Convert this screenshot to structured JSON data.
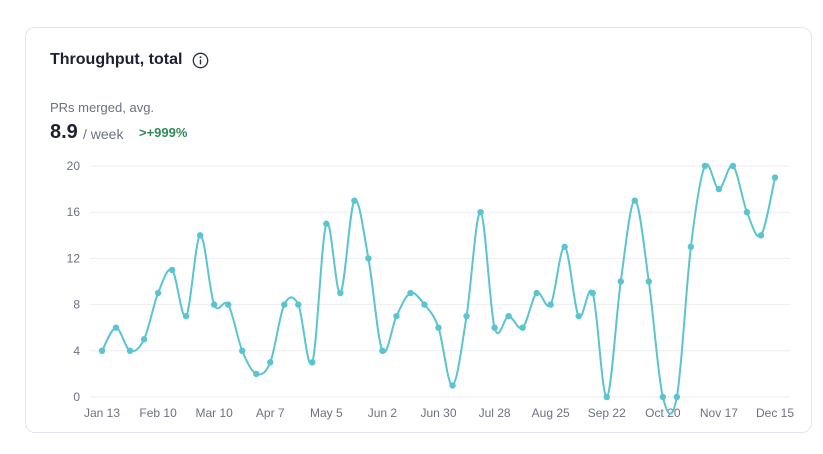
{
  "widget": {
    "title": "Throughput, total",
    "metric_label": "PRs merged, avg.",
    "metric_value": "8.9",
    "metric_unit": "/ week",
    "metric_change": ">+999%"
  },
  "icons": {
    "info": "info-circle-icon"
  },
  "colors": {
    "line": "#5bc4d1",
    "grid": "#eceef4",
    "positive": "#2e8b57"
  },
  "chart_data": {
    "type": "line",
    "ylim": [
      0,
      20
    ],
    "y_ticks": [
      0,
      4,
      8,
      12,
      16,
      20
    ],
    "x_tick_labels": [
      "Jan 13",
      "Feb 10",
      "Mar 10",
      "Apr 7",
      "May 5",
      "Jun 2",
      "Jun 30",
      "Jul 28",
      "Aug 25",
      "Sep 22",
      "Oct 20",
      "Nov 17",
      "Dec 15"
    ],
    "grid": true,
    "series": [
      {
        "values": [
          4,
          6,
          4,
          5,
          9,
          11,
          7,
          14,
          8,
          8,
          4,
          2,
          3,
          8,
          8,
          3,
          15,
          9,
          17,
          12,
          4,
          7,
          9,
          8,
          6,
          1,
          7,
          16,
          6,
          7,
          6,
          9,
          8,
          13,
          7,
          9,
          0,
          10,
          17,
          10,
          0,
          0,
          13,
          20,
          18,
          20,
          16,
          14,
          19
        ]
      }
    ]
  }
}
